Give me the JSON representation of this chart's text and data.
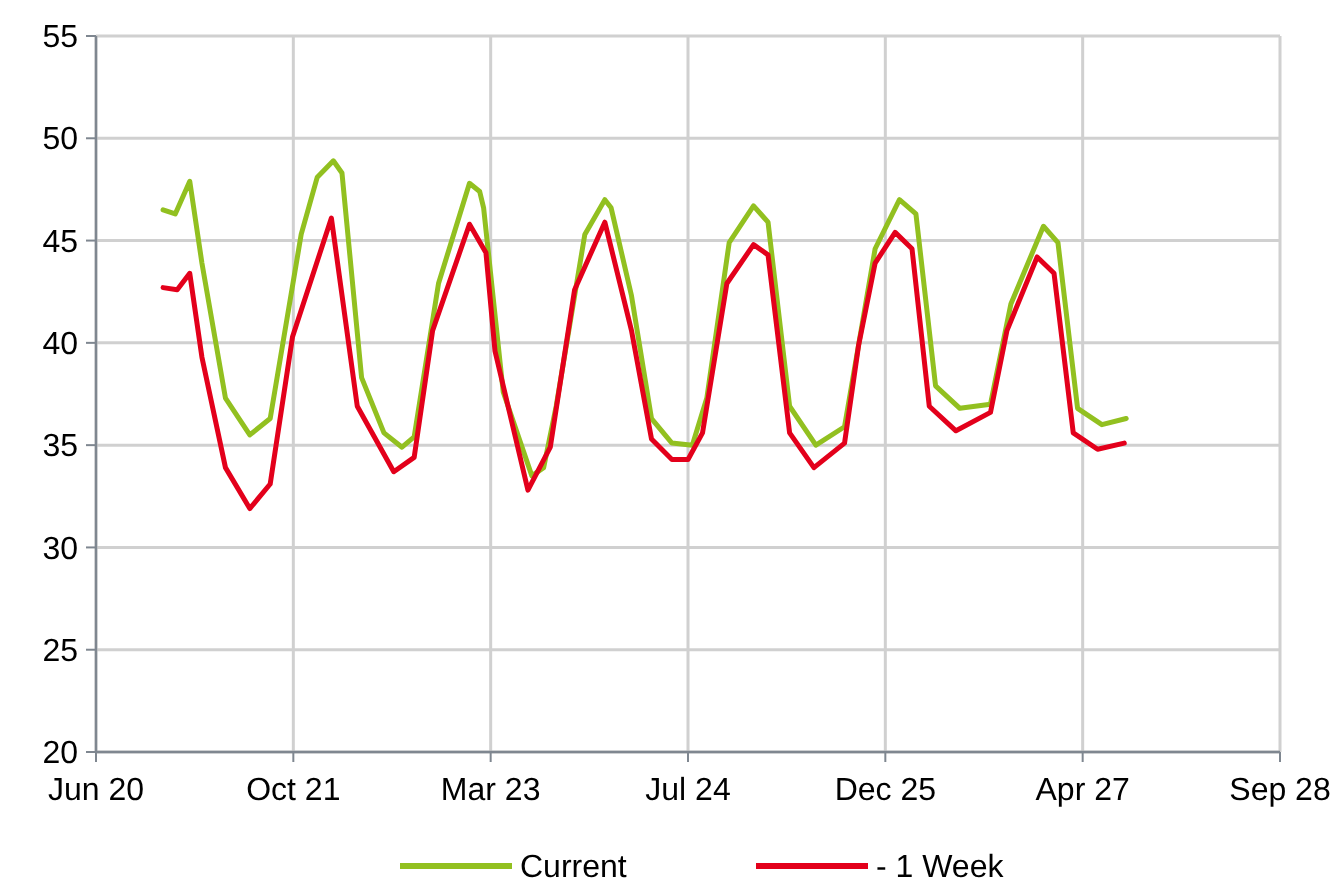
{
  "chart_data": {
    "type": "line",
    "xlim": [
      "2020-06-10",
      "2028-09-14"
    ],
    "xticks": [
      {
        "value": "2020-06-10",
        "label": "Jun 20"
      },
      {
        "value": "2021-10-26",
        "label": "Oct 21"
      },
      {
        "value": "2023-03-13",
        "label": "Mar 23"
      },
      {
        "value": "2024-07-28",
        "label": "Jul 24"
      },
      {
        "value": "2025-12-13",
        "label": "Dec 25"
      },
      {
        "value": "2027-04-30",
        "label": "Apr 27"
      },
      {
        "value": "2028-09-14",
        "label": "Sep 28"
      }
    ],
    "ylim": [
      20,
      55
    ],
    "yticks": [
      20,
      25,
      30,
      35,
      40,
      45,
      50,
      55
    ],
    "grid": true,
    "legend": "bottom",
    "line_style": "solid",
    "marker": "none",
    "series": [
      {
        "name": "Current",
        "color": "#92c020",
        "x": [
          "2020-11-28",
          "2020-12-29",
          "2021-02-04",
          "2021-03-07",
          "2021-05-06",
          "2021-07-07",
          "2021-08-28",
          "2021-11-15",
          "2021-12-26",
          "2022-02-05",
          "2022-02-27",
          "2022-04-18",
          "2022-06-14",
          "2022-07-30",
          "2022-08-30",
          "2022-10-31",
          "2023-01-18",
          "2023-02-13",
          "2023-02-23",
          "2023-04-14",
          "2023-06-26",
          "2023-07-26",
          "2023-08-27",
          "2023-11-08",
          "2023-12-29",
          "2024-01-14",
          "2024-03-06",
          "2024-04-26",
          "2024-06-17",
          "2024-08-08",
          "2024-09-14",
          "2024-11-10",
          "2025-01-11",
          "2025-02-17",
          "2025-04-13",
          "2025-06-19",
          "2025-08-31",
          "2025-11-17",
          "2026-01-18",
          "2026-03-01",
          "2026-04-20",
          "2026-06-21",
          "2026-09-07",
          "2026-10-29",
          "2027-01-20",
          "2027-02-26",
          "2027-04-17",
          "2027-06-18",
          "2027-08-19"
        ],
        "values": [
          46.5,
          46.3,
          47.9,
          43.9,
          37.3,
          35.5,
          36.3,
          45.3,
          48.1,
          48.9,
          48.3,
          38.3,
          35.6,
          34.9,
          35.4,
          42.9,
          47.8,
          47.4,
          46.6,
          37.6,
          33.5,
          33.9,
          36.9,
          45.3,
          47.0,
          46.6,
          42.3,
          36.3,
          35.1,
          35.0,
          37.3,
          44.9,
          46.7,
          45.9,
          36.9,
          35.0,
          35.9,
          44.6,
          47.0,
          46.3,
          37.9,
          36.8,
          37.0,
          41.9,
          45.7,
          44.9,
          36.8,
          36.0,
          36.3
        ]
      },
      {
        "name": "- 1 Week",
        "color": "#e3001b",
        "x": [
          "2020-11-28",
          "2021-01-03",
          "2021-02-04",
          "2021-03-07",
          "2021-05-06",
          "2021-07-07",
          "2021-08-28",
          "2021-10-24",
          "2022-01-31",
          "2022-04-07",
          "2022-07-09",
          "2022-08-30",
          "2022-10-16",
          "2023-01-18",
          "2023-03-01",
          "2023-03-24",
          "2023-06-16",
          "2023-08-12",
          "2023-10-13",
          "2023-12-29",
          "2024-03-06",
          "2024-04-26",
          "2024-06-17",
          "2024-07-28",
          "2024-09-03",
          "2024-11-04",
          "2025-01-11",
          "2025-02-17",
          "2025-04-13",
          "2025-06-14",
          "2025-08-31",
          "2025-10-06",
          "2025-11-17",
          "2026-01-07",
          "2026-02-19",
          "2026-04-04",
          "2026-06-11",
          "2026-09-07",
          "2026-10-19",
          "2027-01-04",
          "2027-02-16",
          "2027-04-06",
          "2027-06-07",
          "2027-08-14"
        ],
        "values": [
          42.7,
          42.6,
          43.4,
          39.3,
          33.9,
          31.9,
          33.1,
          40.3,
          46.1,
          36.9,
          33.7,
          34.4,
          40.6,
          45.8,
          44.4,
          39.6,
          32.8,
          34.9,
          42.6,
          45.9,
          40.6,
          35.3,
          34.3,
          34.3,
          35.6,
          42.9,
          44.8,
          44.3,
          35.6,
          33.9,
          35.1,
          39.9,
          43.9,
          45.4,
          44.6,
          36.9,
          35.7,
          36.6,
          40.6,
          44.2,
          43.4,
          35.6,
          34.8,
          35.1
        ]
      }
    ]
  }
}
